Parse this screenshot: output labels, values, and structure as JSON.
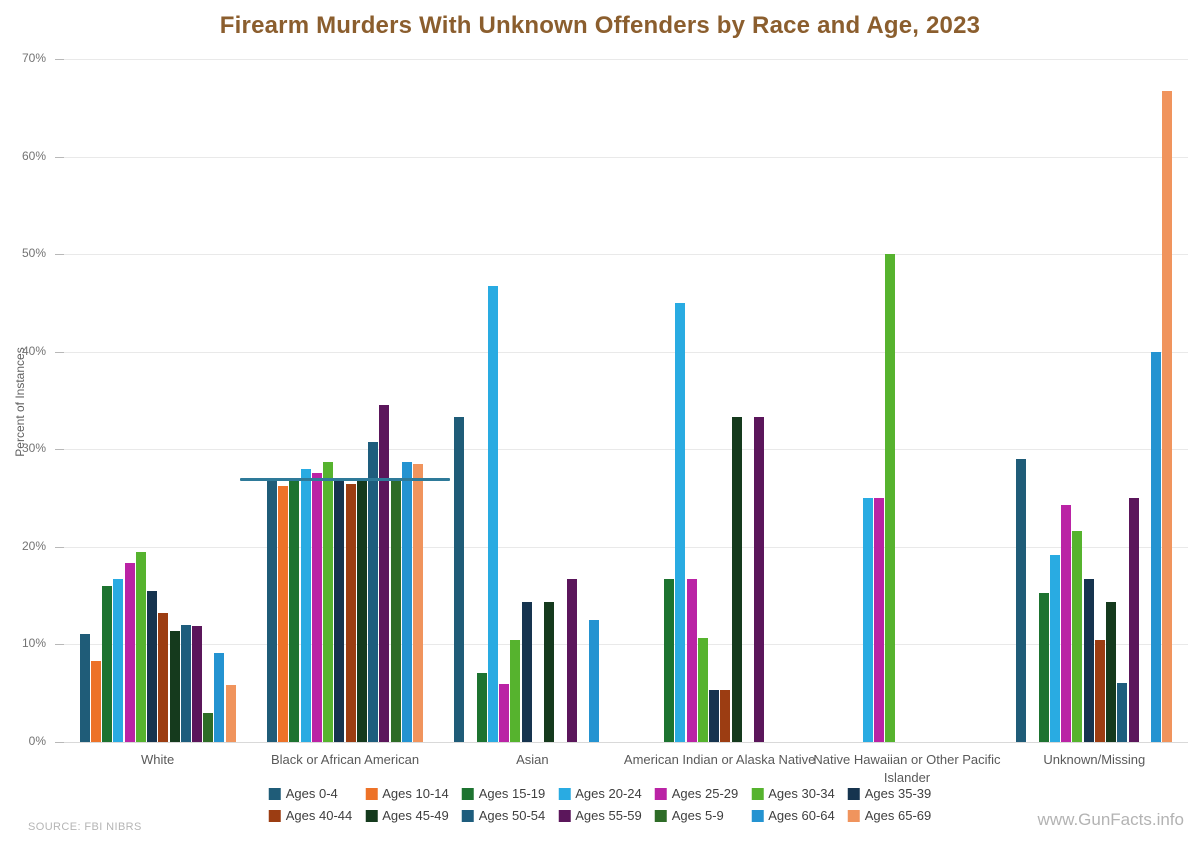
{
  "source": "SOURCE: FBI NIBRS",
  "watermark": "www.GunFacts.info",
  "colors": {
    "title": "#8b5e2e",
    "gridline": "#e9e9e9",
    "axis_text": "#737373",
    "category_text": "#595959",
    "legend_text": "#3f3f3f",
    "reference_line": "#2e7a99"
  },
  "chart_data": {
    "type": "bar",
    "title": "Firearm Murders With Unknown Offenders by Race and Age, 2023",
    "xlabel": "",
    "ylabel": "Percent of Instances",
    "ylim": [
      0,
      70
    ],
    "ytick_step": 10,
    "ytick_suffix": "%",
    "grid": true,
    "legend_position": "bottom",
    "categories": [
      "White",
      "Black or African American",
      "Asian",
      "American Indian or Alaska Native",
      "Native Hawaiian or Other Pacific Islander",
      "Unknown/Missing"
    ],
    "series": [
      {
        "name": "Ages 0-4",
        "color": "#1f5c78",
        "values": [
          11.1,
          26.8,
          33.3,
          null,
          null,
          29.0
        ]
      },
      {
        "name": "Ages 10-14",
        "color": "#ed7228",
        "values": [
          8.3,
          26.2,
          null,
          null,
          null,
          null
        ]
      },
      {
        "name": "Ages 15-19",
        "color": "#1d7330",
        "values": [
          16.0,
          27.0,
          7.1,
          16.7,
          null,
          15.3
        ]
      },
      {
        "name": "Ages 20-24",
        "color": "#29abe2",
        "values": [
          16.7,
          28.0,
          46.7,
          45.0,
          25.0,
          19.2
        ]
      },
      {
        "name": "Ages 25-29",
        "color": "#ba23a5",
        "values": [
          18.3,
          27.6,
          5.9,
          16.7,
          25.0,
          24.3
        ]
      },
      {
        "name": "Ages 30-34",
        "color": "#56b32e",
        "values": [
          19.5,
          28.7,
          10.5,
          10.7,
          50.0,
          21.6
        ]
      },
      {
        "name": "Ages 35-39",
        "color": "#16344f",
        "values": [
          15.5,
          27.1,
          14.3,
          5.3,
          null,
          16.7
        ]
      },
      {
        "name": "Ages 40-44",
        "color": "#9c3d12",
        "values": [
          13.2,
          26.4,
          null,
          5.3,
          null,
          10.5
        ]
      },
      {
        "name": "Ages 45-49",
        "color": "#153a1d",
        "values": [
          11.4,
          27.0,
          14.3,
          33.3,
          null,
          14.3
        ]
      },
      {
        "name": "Ages 50-54",
        "color": "#1e5d7d",
        "values": [
          12.0,
          30.7,
          null,
          null,
          null,
          6.0
        ]
      },
      {
        "name": "Ages 55-59",
        "color": "#5b165b",
        "values": [
          11.9,
          34.5,
          16.7,
          33.3,
          null,
          25.0
        ]
      },
      {
        "name": "Ages 5-9",
        "color": "#2e6c27",
        "values": [
          3.0,
          26.8,
          null,
          null,
          null,
          null
        ]
      },
      {
        "name": "Ages 60-64",
        "color": "#2493d1",
        "values": [
          9.1,
          28.7,
          12.5,
          null,
          null,
          40.0
        ]
      },
      {
        "name": "Ages 65-69",
        "color": "#f0945d",
        "values": [
          5.8,
          28.5,
          null,
          null,
          null,
          66.7
        ]
      }
    ],
    "reference_line": {
      "value": 26.9,
      "category_index": 1,
      "color": "#2e7a99"
    }
  }
}
